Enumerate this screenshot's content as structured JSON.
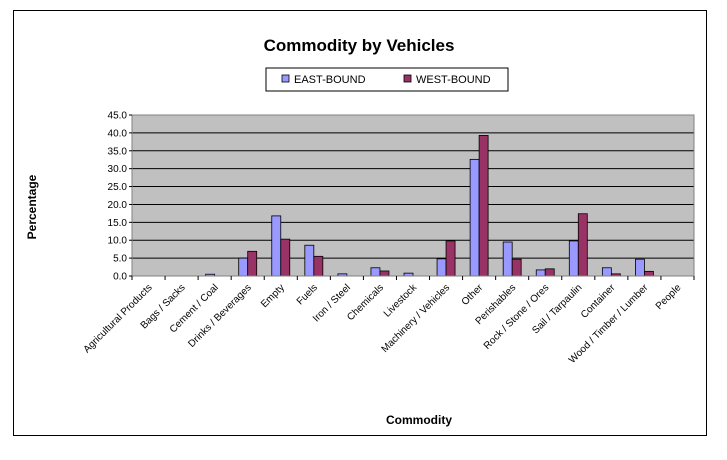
{
  "chart_data": {
    "type": "bar",
    "title": "Commodity by Vehicles",
    "xlabel": "Commodity",
    "ylabel": "Percentage",
    "ylim": [
      0,
      45
    ],
    "ytick_step": 5,
    "ytick_labels": [
      "0.0",
      "5.0",
      "10.0",
      "15.0",
      "20.0",
      "25.0",
      "30.0",
      "35.0",
      "40.0",
      "45.0"
    ],
    "grid": true,
    "legend_position": "top-center",
    "categories": [
      "Agricultural Products",
      "Bags / Sacks",
      "Cement / Coal",
      "Drinks / Beverages",
      "Empty",
      "Fuels",
      "Iron / Steel",
      "Chemicals",
      "Livestock",
      "Machinery / Vehicles",
      "Other",
      "Perishables",
      "Rock / Stone / Ores",
      "Sail / Tarpaulin",
      "Container",
      "Wood / Timber / Lumber",
      "People"
    ],
    "series": [
      {
        "name": "EAST-BOUND",
        "color": "#9999ff",
        "values": [
          0,
          0,
          0.5,
          5.0,
          16.8,
          8.6,
          0.6,
          2.3,
          0.8,
          4.8,
          32.6,
          9.5,
          1.7,
          9.8,
          2.3,
          4.7,
          0
        ]
      },
      {
        "name": "WEST-BOUND",
        "color": "#993366",
        "values": [
          0,
          0,
          0,
          6.9,
          10.3,
          5.5,
          0,
          1.4,
          0,
          9.8,
          39.3,
          4.7,
          2.0,
          17.4,
          0.6,
          1.3,
          0
        ]
      }
    ],
    "plot_background": "#c0c0c0"
  }
}
